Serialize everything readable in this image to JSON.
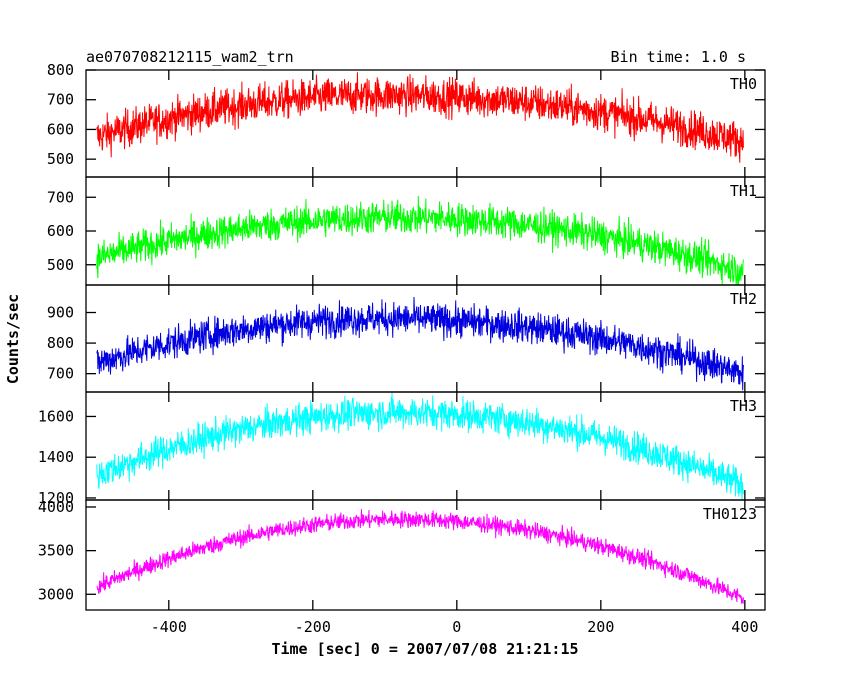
{
  "header": {
    "title": "ae070708212115_wam2_trn",
    "bin_time": "Bin time: 1.0 s"
  },
  "chart_data": {
    "type": "line",
    "xlabel": "Time [sec] 0 = 2007/07/08 21:21:15",
    "ylabel": "Counts/sec",
    "xlim": [
      -515,
      428
    ],
    "x_ticks": [
      -400,
      -200,
      0,
      200,
      400
    ],
    "x_range": [
      -500,
      398
    ],
    "panels": [
      {
        "name": "TH0",
        "color": "#ff0000",
        "ylim": [
          440,
          800
        ],
        "y_ticks": [
          500,
          600,
          700,
          800
        ],
        "curve": {
          "start": 575,
          "peak": 715,
          "peak_x": -100,
          "end": 560,
          "noise": 45
        },
        "points": [
          [
            -500,
            575
          ],
          [
            -400,
            610
          ],
          [
            -300,
            650
          ],
          [
            -200,
            690
          ],
          [
            -100,
            715
          ],
          [
            0,
            710
          ],
          [
            100,
            680
          ],
          [
            200,
            630
          ],
          [
            300,
            590
          ],
          [
            398,
            560
          ]
        ]
      },
      {
        "name": "TH1",
        "color": "#00ff00",
        "ylim": [
          440,
          760
        ],
        "y_ticks": [
          500,
          600,
          700
        ],
        "curve": {
          "start": 520,
          "peak": 640,
          "peak_x": -80,
          "end": 480,
          "noise": 35
        },
        "points": [
          [
            -500,
            520
          ],
          [
            -400,
            550
          ],
          [
            -300,
            590
          ],
          [
            -200,
            620
          ],
          [
            -100,
            640
          ],
          [
            0,
            640
          ],
          [
            100,
            615
          ],
          [
            200,
            570
          ],
          [
            300,
            520
          ],
          [
            398,
            480
          ]
        ]
      },
      {
        "name": "TH2",
        "color": "#0000e0",
        "ylim": [
          640,
          990
        ],
        "y_ticks": [
          700,
          800,
          900
        ],
        "curve": {
          "start": 735,
          "peak": 880,
          "peak_x": -100,
          "end": 700,
          "noise": 38
        },
        "points": [
          [
            -500,
            735
          ],
          [
            -400,
            770
          ],
          [
            -300,
            820
          ],
          [
            -200,
            860
          ],
          [
            -100,
            880
          ],
          [
            0,
            870
          ],
          [
            100,
            845
          ],
          [
            200,
            800
          ],
          [
            300,
            750
          ],
          [
            398,
            700
          ]
        ]
      },
      {
        "name": "TH3",
        "color": "#00ffff",
        "ylim": [
          1190,
          1720
        ],
        "y_ticks": [
          1200,
          1400,
          1600
        ],
        "curve": {
          "start": 1310,
          "peak": 1620,
          "peak_x": -80,
          "end": 1260,
          "noise": 55
        },
        "points": [
          [
            -500,
            1310
          ],
          [
            -400,
            1390
          ],
          [
            -300,
            1480
          ],
          [
            -200,
            1560
          ],
          [
            -100,
            1620
          ],
          [
            0,
            1610
          ],
          [
            100,
            1570
          ],
          [
            200,
            1480
          ],
          [
            300,
            1390
          ],
          [
            398,
            1260
          ]
        ]
      },
      {
        "name": "TH0123",
        "color": "#ff00ff",
        "ylim": [
          2820,
          4080
        ],
        "y_ticks": [
          3000,
          3500,
          4000
        ],
        "curve": {
          "start": 3080,
          "peak": 3860,
          "peak_x": -80,
          "end": 2950,
          "noise": 70
        },
        "points": [
          [
            -500,
            3080
          ],
          [
            -400,
            3270
          ],
          [
            -300,
            3460
          ],
          [
            -200,
            3680
          ],
          [
            -100,
            3850
          ],
          [
            0,
            3830
          ],
          [
            100,
            3700
          ],
          [
            200,
            3520
          ],
          [
            300,
            3250
          ],
          [
            398,
            2950
          ]
        ]
      }
    ]
  }
}
